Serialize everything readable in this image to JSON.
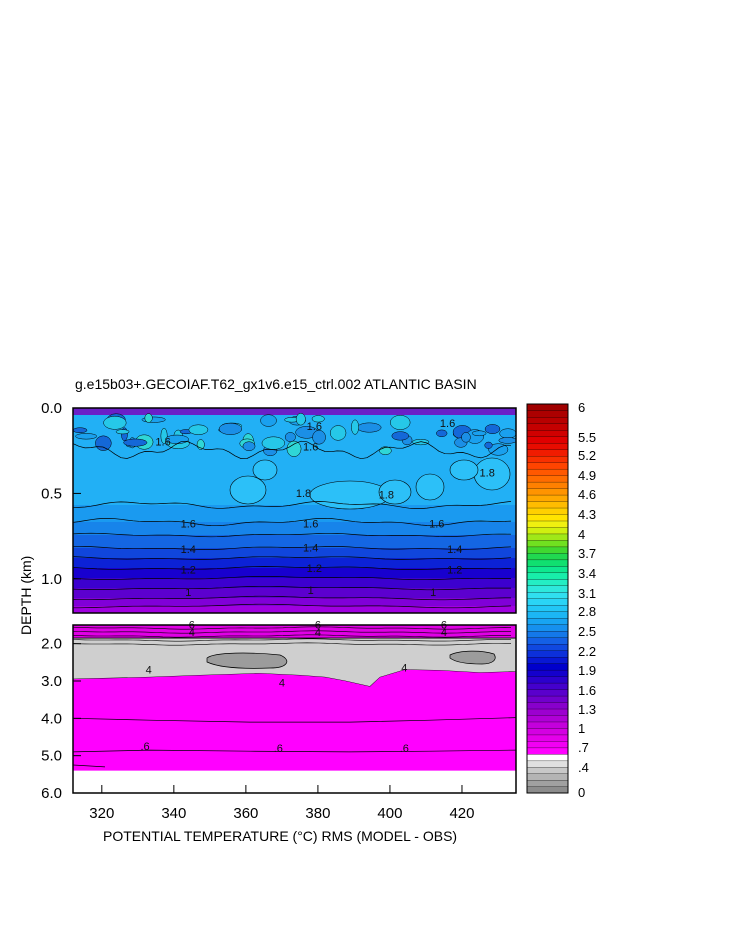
{
  "chart_data": {
    "type": "heatmap",
    "title": "g.e15b03+.GECOIAF.T62_gx1v6.e15_ctrl.002 ATLANTIC BASIN",
    "xlabel": "POTENTIAL TEMPERATURE (°C) RMS (MODEL - OBS)",
    "ylabel": "DEPTH (km)",
    "xlim": [
      312,
      435
    ],
    "x_ticks": [
      "320",
      "340",
      "360",
      "380",
      "400",
      "420"
    ],
    "x_tick_values": [
      320,
      340,
      360,
      380,
      400,
      420
    ],
    "upper_panel": {
      "ylim": [
        0.0,
        1.2
      ],
      "y_ticks": [
        "0.0",
        "0.5",
        "1.0"
      ],
      "y_tick_values": [
        0.0,
        0.5,
        1.0
      ],
      "contour_labels": [
        {
          "text": "1.6",
          "x": 337,
          "depth": 0.22
        },
        {
          "text": "1.6",
          "x": 379,
          "depth": 0.13
        },
        {
          "text": "1.6",
          "x": 416,
          "depth": 0.11
        },
        {
          "text": "1.6",
          "x": 378,
          "depth": 0.25
        },
        {
          "text": "1.8",
          "x": 376,
          "depth": 0.52
        },
        {
          "text": "1.8",
          "x": 399,
          "depth": 0.53
        },
        {
          "text": "1.8",
          "x": 427,
          "depth": 0.4
        },
        {
          "text": "1.6",
          "x": 344,
          "depth": 0.7
        },
        {
          "text": "1.6",
          "x": 378,
          "depth": 0.7
        },
        {
          "text": "1.6",
          "x": 413,
          "depth": 0.7
        },
        {
          "text": "1.4",
          "x": 344,
          "depth": 0.85
        },
        {
          "text": "1.4",
          "x": 378,
          "depth": 0.84
        },
        {
          "text": "1.4",
          "x": 418,
          "depth": 0.85
        },
        {
          "text": "1.2",
          "x": 344,
          "depth": 0.97
        },
        {
          "text": "1.2",
          "x": 379,
          "depth": 0.96
        },
        {
          "text": "1.2",
          "x": 418,
          "depth": 0.97
        },
        {
          "text": "1",
          "x": 344,
          "depth": 1.1
        },
        {
          "text": "1",
          "x": 378,
          "depth": 1.09
        },
        {
          "text": "1",
          "x": 412,
          "depth": 1.1
        }
      ]
    },
    "lower_panel": {
      "ylim": [
        1.5,
        6.0
      ],
      "y_ticks": [
        "2.0",
        "3.0",
        "4.0",
        "5.0",
        "6.0"
      ],
      "y_tick_values": [
        2.0,
        3.0,
        4.0,
        5.0,
        6.0
      ],
      "contour_labels": [
        {
          "text": "6",
          "x": 345,
          "depth": 1.6
        },
        {
          "text": "6",
          "x": 380,
          "depth": 1.6
        },
        {
          "text": "6",
          "x": 415,
          "depth": 1.6
        },
        {
          "text": "4",
          "x": 345,
          "depth": 1.8
        },
        {
          "text": "4",
          "x": 380,
          "depth": 1.8
        },
        {
          "text": "4",
          "x": 415,
          "depth": 1.8
        },
        {
          "text": "4",
          "x": 333,
          "depth": 2.8
        },
        {
          "text": "4",
          "x": 370,
          "depth": 3.15
        },
        {
          "text": "4",
          "x": 404,
          "depth": 2.75
        },
        {
          "text": ".6",
          "x": 332,
          "depth": 4.85
        },
        {
          "text": ".6",
          "x": 369,
          "depth": 4.9
        },
        {
          "text": ".6",
          "x": 404,
          "depth": 4.9
        }
      ]
    },
    "colorbar": {
      "labels": [
        "6",
        "5.5",
        "5.2",
        "4.9",
        "4.6",
        "4.3",
        "4",
        "3.7",
        "3.4",
        "3.1",
        "2.8",
        "2.5",
        "2.2",
        "1.9",
        "1.6",
        "1.3",
        "1",
        ".7",
        ".4",
        "0"
      ],
      "label_values": [
        6.0,
        5.5,
        5.2,
        4.9,
        4.6,
        4.3,
        4.0,
        3.7,
        3.4,
        3.1,
        2.8,
        2.5,
        2.2,
        1.9,
        1.6,
        1.3,
        1.0,
        0.7,
        0.4,
        0.0
      ]
    }
  }
}
